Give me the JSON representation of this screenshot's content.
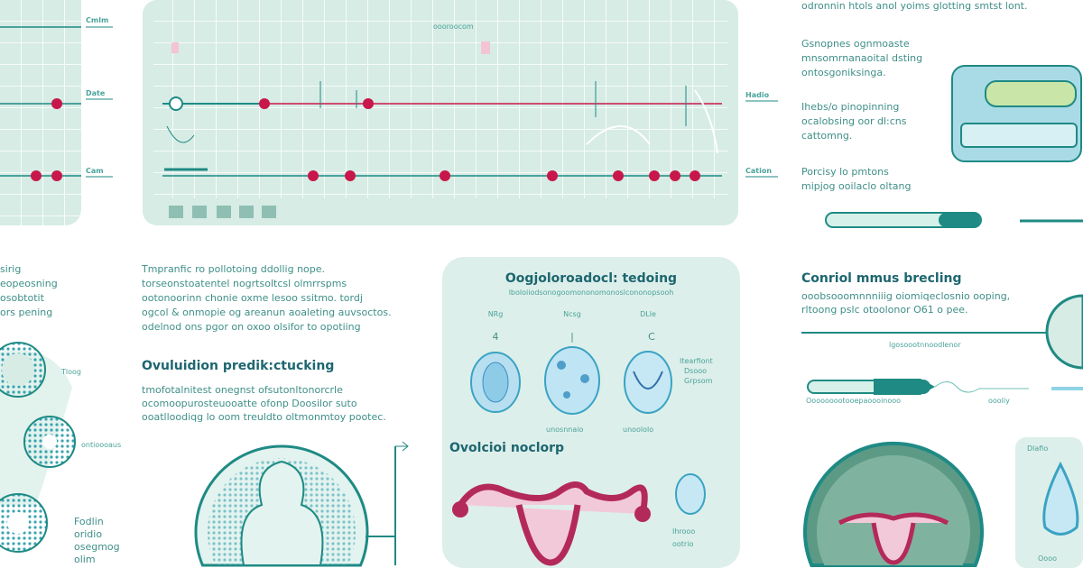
{
  "colors": {
    "panel": "#d6ece5",
    "grid": "#ffffff",
    "teal": "#1f8a84",
    "dot": "#c8174a",
    "text": "#3f8f88",
    "heading": "#1d6670"
  },
  "left_chart": {
    "labels": [
      "Cmlm",
      "Date",
      "Cam"
    ]
  },
  "main_chart": {
    "right_labels": [
      "Hadio",
      "Cation"
    ],
    "top_label": "oooroocom"
  },
  "right_column": {
    "top_line": "odronnin htols anol yoims glotting smtst lont.",
    "blocks": [
      [
        "Gsnopnes ognmoaste",
        "mnsomrnanaoital dsting",
        "ontosgoniksinga."
      ],
      [
        "Ihebs/o pinopinning",
        "ocalobsing oor dl:cns",
        "cattomng."
      ],
      [
        "Porcisy lo pmtons",
        "mipjog ooilaclo oltang"
      ]
    ]
  },
  "left_text": [
    "sirig",
    "eopeosning",
    "osobtotit",
    "ors pening"
  ],
  "middle_text": {
    "paragraph": [
      "Tmpranfic ro pollotoing ddollig nope.",
      "torseonstoatentel nogrtsoltcsl olmrrspms",
      "ootonoorinn chonie oxme lesoo ssitmo. tordj",
      "ogcol & onmopie og areanun aoaleting auvsoctos.",
      "odelnod ons pgor on oxoo olsifor to opotiing"
    ],
    "heading": "Ovuluidion predik:ctucking",
    "paragraph2": [
      "tmofotalnitest onegnst ofsutonltonorcrle",
      "ocomoopurosteuooatte ofonp Doosilor suto",
      "ooatlloodiqg lo oom treuldto oltmonmtoy pootec."
    ]
  },
  "follicles": {
    "labels": [
      "Tloog",
      "ontioooaus",
      "Fodlin",
      "oridio",
      "osegmog",
      "olim"
    ]
  },
  "middle_card": {
    "title": "Oogjoloroadocl: tedoing",
    "subtitle": "lboloiiodsonogoomononomonoslcononopsooh",
    "columns": [
      "NRg",
      "Ncsg",
      "DLle"
    ],
    "marks": [
      "4",
      "|",
      "C"
    ],
    "side_note": [
      "Itearfiont",
      "Dsooo",
      "Grpsom"
    ],
    "captions": [
      "unosnnaio",
      "unoololo"
    ],
    "heading2": "Ovolcioi noclorp",
    "side_caption": [
      "Ihrooo",
      "ootrio"
    ]
  },
  "right_section": {
    "heading": "Conriol mmus brecling",
    "lines": [
      "ooobsooomnnniiig oiomiqeclosnio ooping,",
      "rltoong pslc otoolonor O61 o pee."
    ],
    "line_label": "lgosoootnnoodlenor",
    "captions": [
      "Ooooooootooepaoooinooo",
      "oooliy"
    ],
    "card_label": "Dlafio",
    "card_caption": "Oooo"
  }
}
